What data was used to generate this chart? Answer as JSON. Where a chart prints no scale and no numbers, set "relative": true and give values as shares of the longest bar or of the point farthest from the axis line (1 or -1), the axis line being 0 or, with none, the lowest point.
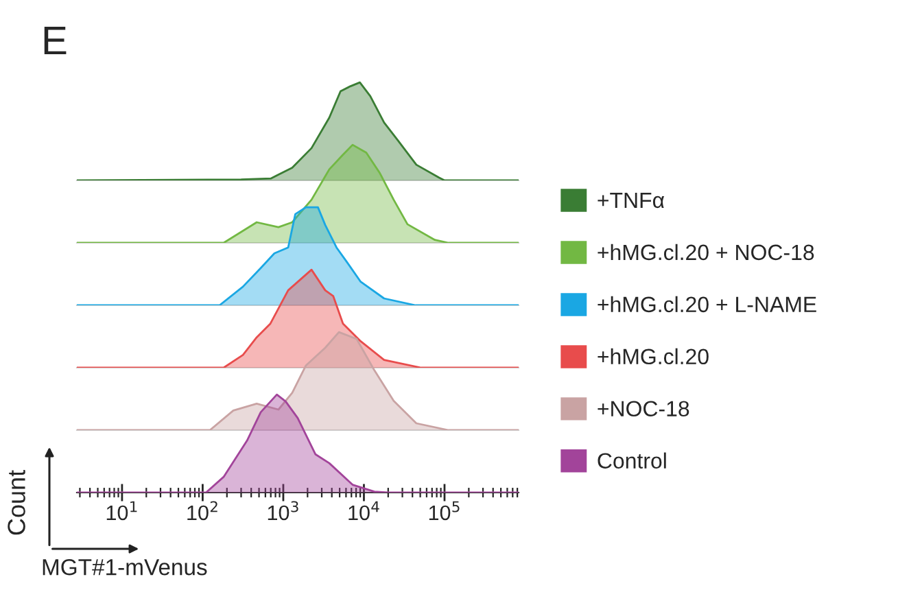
{
  "chart_data": [
    {
      "type": "area",
      "relative": true,
      "annotations": [
        "E"
      ],
      "xlim": [
        2.75,
        830000
      ],
      "log": "x",
      "tick_labels": false,
      "legend": "right",
      "series": [
        {
          "name": "+TNFα",
          "color": "#3a7d34",
          "x": [
            2.75,
            300,
            700,
            1290,
            2240,
            3720,
            5130,
            6760,
            8910,
            12000,
            17800,
            26300,
            44700,
            85100,
            100000,
            830000
          ],
          "values": [
            0,
            0.01,
            0.02,
            0.13,
            0.33,
            0.64,
            0.91,
            0.96,
            1.0,
            0.86,
            0.59,
            0.41,
            0.16,
            0.03,
            0,
            0
          ]
        }
      ]
    },
    {
      "type": "area",
      "relative": true,
      "xlim": [
        2.75,
        830000
      ],
      "log": "x",
      "tick_labels": false,
      "legend": "right",
      "series": [
        {
          "name": "+hMG.cl.20 + NOC-18",
          "color": "#72b843",
          "x": [
            2.75,
            182,
            468,
            871,
            1290,
            2240,
            3720,
            5500,
            7240,
            10700,
            15800,
            23400,
            34700,
            75900,
            112000,
            830000
          ],
          "values": [
            0,
            0,
            0.21,
            0.16,
            0.21,
            0.44,
            0.75,
            0.9,
            1.0,
            0.92,
            0.71,
            0.44,
            0.19,
            0.03,
            0,
            0
          ]
        }
      ]
    },
    {
      "type": "area",
      "relative": true,
      "xlim": [
        2.75,
        830000
      ],
      "log": "x",
      "tick_labels": false,
      "legend": "right",
      "series": [
        {
          "name": "+hMG.cl.20 + L-NAME",
          "color": "#1aa7e3",
          "x": [
            2.75,
            162,
            316,
            525,
            776,
            1150,
            1410,
            1910,
            2690,
            3310,
            4570,
            6170,
            9120,
            17800,
            43700,
            830000
          ],
          "values": [
            0,
            0,
            0.19,
            0.38,
            0.53,
            0.59,
            0.93,
            1.0,
            1.0,
            0.82,
            0.59,
            0.44,
            0.24,
            0.07,
            0,
            0
          ]
        }
      ]
    },
    {
      "type": "area",
      "relative": true,
      "xlim": [
        2.75,
        830000
      ],
      "log": "x",
      "tick_labels": false,
      "legend": "right",
      "series": [
        {
          "name": "+hMG.cl.20",
          "color": "#e84c4c",
          "x": [
            2.75,
            182,
            316,
            468,
            692,
            1150,
            2240,
            3310,
            4170,
            5500,
            9120,
            17800,
            51300,
            830000
          ],
          "values": [
            0,
            0,
            0.13,
            0.31,
            0.45,
            0.79,
            1.0,
            0.79,
            0.73,
            0.45,
            0.27,
            0.08,
            0,
            0
          ]
        }
      ]
    },
    {
      "type": "area",
      "relative": true,
      "xlim": [
        2.75,
        830000
      ],
      "log": "x",
      "tick_labels": false,
      "legend": "right",
      "series": [
        {
          "name": "+NOC-18",
          "color": "#c9a3a3",
          "x": [
            2.75,
            123,
            240,
            468,
            871,
            1290,
            1910,
            3310,
            4900,
            8130,
            13500,
            23400,
            44700,
            112000,
            830000
          ],
          "values": [
            0,
            0,
            0.2,
            0.27,
            0.21,
            0.38,
            0.66,
            0.84,
            1.0,
            0.93,
            0.61,
            0.3,
            0.07,
            0,
            0
          ]
        }
      ]
    },
    {
      "type": "area",
      "relative": true,
      "xlim": [
        2.75,
        830000
      ],
      "log": "x",
      "tick_labels": "x",
      "legend": "right",
      "xlabel": "MGT#1-mVenus",
      "ylabel": "Count",
      "xticks": [
        {
          "value": 10,
          "label": "10$^{1}$"
        },
        {
          "value": 100,
          "label": "10$^{2}$"
        },
        {
          "value": 1000,
          "label": "10$^{3}$"
        },
        {
          "value": 10000,
          "label": "10$^{4}$"
        },
        {
          "value": 100000,
          "label": "10$^{5}$"
        }
      ],
      "series": [
        {
          "name": "Control",
          "color": "#a2449a",
          "x": [
            2.75,
            110,
            182,
            355,
            525,
            832,
            1070,
            1510,
            2510,
            3720,
            7240,
            13500,
            20000,
            830000
          ],
          "values": [
            0,
            0,
            0.16,
            0.53,
            0.82,
            1.0,
            0.93,
            0.76,
            0.39,
            0.3,
            0.08,
            0.01,
            0,
            0
          ]
        }
      ]
    }
  ]
}
